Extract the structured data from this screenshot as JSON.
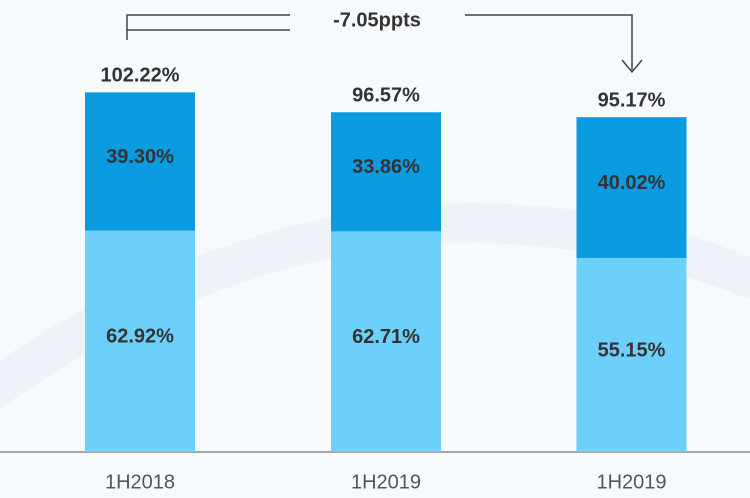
{
  "chart_data": {
    "type": "stacked_bar",
    "annotation": "-7.05ppts",
    "categories": [
      "1H2018",
      "1H2019",
      "1H2019"
    ],
    "series": [
      {
        "color": "#6dd0fb",
        "values": [
          62.92,
          62.71,
          55.15
        ],
        "value_labels": [
          "62.92%",
          "62.71%",
          "55.15%"
        ]
      },
      {
        "color": "#0a9be0",
        "values": [
          39.3,
          33.86,
          40.02
        ],
        "value_labels": [
          "39.30%",
          "33.86%",
          "40.02%"
        ]
      }
    ],
    "totals": [
      102.22,
      96.57,
      95.17
    ],
    "total_labels": [
      "102.22%",
      "96.57%",
      "95.17%"
    ],
    "ylim": [
      0,
      110
    ]
  }
}
